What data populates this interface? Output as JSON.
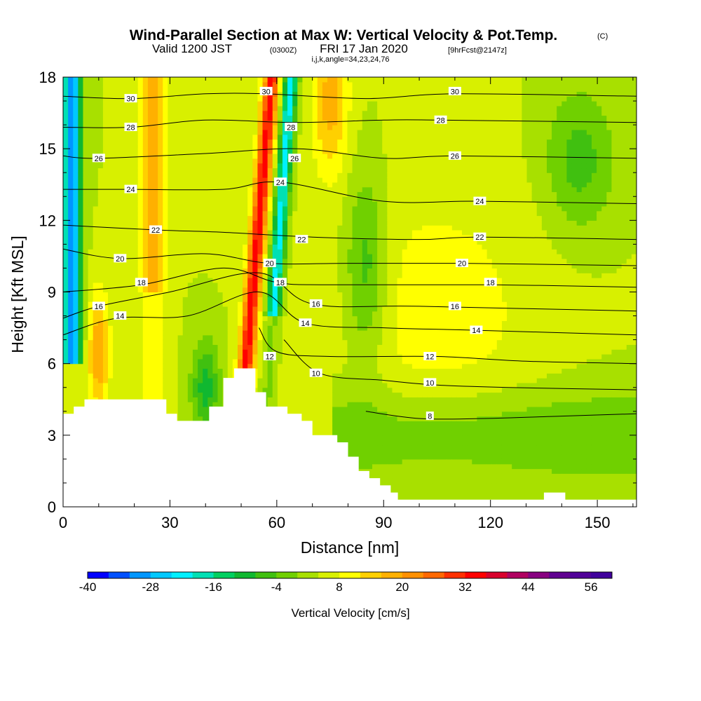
{
  "title": {
    "main": "Wind-Parallel Section at Max W: Vertical Velocity & Pot.Temp.",
    "copyright": "(C)",
    "valid_prefix": "Valid 1200 JST",
    "valid_utc": "(0300Z)",
    "valid_date": "FRI 17 Jan 2020",
    "forecast": "[9hrFcst@2147z]",
    "indices": "i,j,k,angle=34,23,24,76"
  },
  "chart_data": {
    "type": "heatmap",
    "xlabel": "Distance [nm]",
    "ylabel": "Height [Kft MSL]",
    "xlim": [
      0,
      161
    ],
    "ylim": [
      0,
      18
    ],
    "x_ticks": [
      0,
      30,
      60,
      90,
      120,
      150
    ],
    "y_ticks": [
      0,
      3,
      6,
      9,
      12,
      15,
      18
    ],
    "x_tick_labels": [
      "0",
      "30",
      "60",
      "90",
      "120",
      "150"
    ],
    "y_tick_labels": [
      "0",
      "3",
      "6",
      "9",
      "12",
      "15",
      "18"
    ],
    "colorbar": {
      "title": "Vertical Velocity [cm/s]",
      "min": -40,
      "max": 60,
      "step": 4,
      "tick_values": [
        -40,
        -28,
        -16,
        -4,
        8,
        20,
        32,
        44,
        56
      ],
      "tick_labels": [
        "-40",
        "-28",
        "-16",
        "-4",
        "8",
        "20",
        "32",
        "44",
        "56"
      ],
      "colors": [
        "#0000ff",
        "#0050ff",
        "#0096ff",
        "#00c8ff",
        "#00f0ff",
        "#00e0b4",
        "#00d060",
        "#10b830",
        "#40c010",
        "#70d000",
        "#a8e000",
        "#d8f000",
        "#ffff00",
        "#ffd000",
        "#ffb000",
        "#ff9000",
        "#ff6800",
        "#ff3000",
        "#ff0000",
        "#d8002c",
        "#b00060",
        "#880080",
        "#600090",
        "#500098",
        "#40009c"
      ]
    },
    "terrain": [
      [
        0,
        3.9
      ],
      [
        3,
        3.9
      ],
      [
        3,
        4.2
      ],
      [
        6,
        4.2
      ],
      [
        6,
        4.5
      ],
      [
        29,
        4.5
      ],
      [
        29,
        3.9
      ],
      [
        32,
        3.9
      ],
      [
        32,
        3.6
      ],
      [
        41,
        3.6
      ],
      [
        41,
        4.2
      ],
      [
        45,
        4.2
      ],
      [
        45,
        5.4
      ],
      [
        48,
        5.4
      ],
      [
        48,
        5.8
      ],
      [
        54,
        5.8
      ],
      [
        54,
        4.8
      ],
      [
        57,
        4.8
      ],
      [
        57,
        4.2
      ],
      [
        63,
        4.2
      ],
      [
        63,
        3.9
      ],
      [
        67,
        3.9
      ],
      [
        67,
        3.6
      ],
      [
        70,
        3.6
      ],
      [
        70,
        3.0
      ],
      [
        77,
        3.0
      ],
      [
        77,
        2.7
      ],
      [
        80,
        2.7
      ],
      [
        80,
        2.1
      ],
      [
        83,
        2.1
      ],
      [
        83,
        1.5
      ],
      [
        86,
        1.5
      ],
      [
        86,
        1.2
      ],
      [
        89,
        1.2
      ],
      [
        89,
        0.9
      ],
      [
        92,
        0.9
      ],
      [
        92,
        0.6
      ],
      [
        94,
        0.6
      ],
      [
        94,
        0.3
      ],
      [
        135,
        0.3
      ],
      [
        135,
        0.6
      ],
      [
        141,
        0.6
      ],
      [
        141,
        0.3
      ],
      [
        161,
        0.3
      ]
    ],
    "series": [
      {
        "name": "8",
        "x": [
          85,
          100,
          118,
          140,
          161
        ],
        "y": [
          4.0,
          3.7,
          3.7,
          3.8,
          3.9
        ]
      },
      {
        "name": "10",
        "x": [
          62,
          72,
          90,
          105,
          125,
          161
        ],
        "y": [
          7.0,
          5.6,
          5.3,
          5.1,
          5.0,
          4.9
        ]
      },
      {
        "name": "12",
        "x": [
          55,
          60,
          75,
          105,
          130,
          161
        ],
        "y": [
          7.5,
          6.5,
          6.3,
          6.3,
          6.1,
          6.0
        ]
      },
      {
        "name": "14",
        "x": [
          0,
          15,
          35,
          55,
          68,
          90,
          115,
          161
        ],
        "y": [
          7.2,
          7.9,
          8.0,
          9.0,
          7.7,
          7.5,
          7.4,
          7.2
        ]
      },
      {
        "name": "16",
        "x": [
          0,
          10,
          30,
          55,
          70,
          100,
          161
        ],
        "y": [
          7.9,
          8.4,
          9.0,
          9.8,
          8.5,
          8.4,
          8.2
        ]
      },
      {
        "name": "18",
        "x": [
          0,
          22,
          45,
          60,
          75,
          120,
          161
        ],
        "y": [
          9.0,
          9.3,
          10.0,
          9.4,
          9.3,
          9.3,
          9.2
        ]
      },
      {
        "name": "20",
        "x": [
          0,
          16,
          40,
          58,
          80,
          112,
          161
        ],
        "y": [
          10.8,
          10.4,
          10.6,
          10.2,
          10.2,
          10.2,
          10.1
        ]
      },
      {
        "name": "22",
        "x": [
          0,
          26,
          45,
          70,
          100,
          117,
          161
        ],
        "y": [
          11.8,
          11.6,
          11.5,
          11.3,
          11.2,
          11.3,
          11.2
        ]
      },
      {
        "name": "24",
        "x": [
          0,
          19,
          45,
          61,
          90,
          117,
          161
        ],
        "y": [
          13.3,
          13.3,
          13.3,
          13.6,
          12.8,
          12.8,
          12.7
        ]
      },
      {
        "name": "26",
        "x": [
          0,
          10,
          40,
          66,
          90,
          110,
          161
        ],
        "y": [
          14.7,
          14.6,
          14.8,
          15.0,
          14.6,
          14.7,
          14.6
        ]
      },
      {
        "name": "28",
        "x": [
          0,
          19,
          40,
          65,
          90,
          106,
          161
        ],
        "y": [
          15.9,
          15.9,
          16.2,
          16.1,
          16.2,
          16.2,
          16.1
        ]
      },
      {
        "name": "30",
        "x": [
          0,
          19,
          40,
          57,
          85,
          110,
          161
        ],
        "y": [
          17.2,
          17.1,
          17.3,
          17.3,
          17.1,
          17.3,
          17.2
        ]
      }
    ],
    "contour_labels": [
      {
        "text": "8",
        "x": 103,
        "y": 3.8
      },
      {
        "text": "10",
        "x": 71,
        "y": 5.6
      },
      {
        "text": "10",
        "x": 103,
        "y": 5.2
      },
      {
        "text": "12",
        "x": 58,
        "y": 6.3
      },
      {
        "text": "12",
        "x": 103,
        "y": 6.3
      },
      {
        "text": "14",
        "x": 16,
        "y": 8.0
      },
      {
        "text": "14",
        "x": 68,
        "y": 7.7
      },
      {
        "text": "14",
        "x": 116,
        "y": 7.4
      },
      {
        "text": "16",
        "x": 10,
        "y": 8.4
      },
      {
        "text": "16",
        "x": 71,
        "y": 8.5
      },
      {
        "text": "16",
        "x": 110,
        "y": 8.4
      },
      {
        "text": "18",
        "x": 22,
        "y": 9.4
      },
      {
        "text": "18",
        "x": 61,
        "y": 9.4
      },
      {
        "text": "18",
        "x": 120,
        "y": 9.4
      },
      {
        "text": "20",
        "x": 16,
        "y": 10.4
      },
      {
        "text": "20",
        "x": 58,
        "y": 10.2
      },
      {
        "text": "20",
        "x": 112,
        "y": 10.2
      },
      {
        "text": "22",
        "x": 26,
        "y": 11.6
      },
      {
        "text": "22",
        "x": 67,
        "y": 11.2
      },
      {
        "text": "22",
        "x": 117,
        "y": 11.3
      },
      {
        "text": "24",
        "x": 19,
        "y": 13.3
      },
      {
        "text": "24",
        "x": 61,
        "y": 13.6
      },
      {
        "text": "24",
        "x": 117,
        "y": 12.8
      },
      {
        "text": "26",
        "x": 10,
        "y": 14.6
      },
      {
        "text": "26",
        "x": 65,
        "y": 14.6
      },
      {
        "text": "26",
        "x": 110,
        "y": 14.7
      },
      {
        "text": "28",
        "x": 19,
        "y": 15.9
      },
      {
        "text": "28",
        "x": 64,
        "y": 15.9
      },
      {
        "text": "28",
        "x": 106,
        "y": 16.2
      },
      {
        "text": "30",
        "x": 19,
        "y": 17.1
      },
      {
        "text": "30",
        "x": 57,
        "y": 17.4
      },
      {
        "text": "30",
        "x": 110,
        "y": 17.4
      }
    ],
    "grid": false
  }
}
